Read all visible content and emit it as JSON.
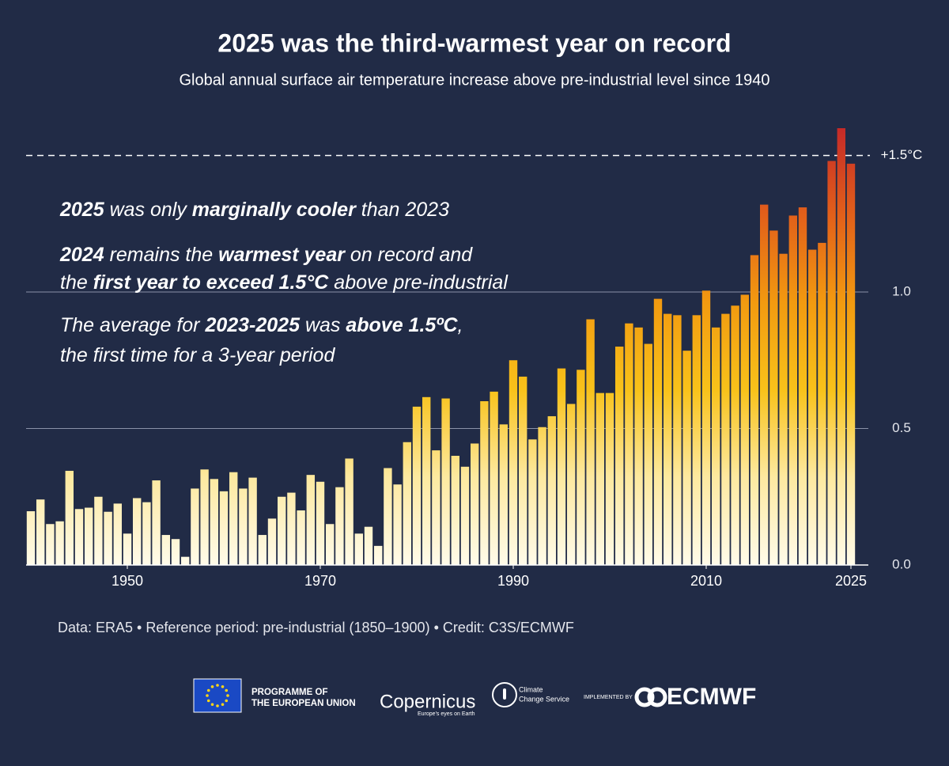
{
  "chart_data": {
    "type": "bar",
    "title": "2025 was the third-warmest year on record",
    "subtitle": "Global annual surface air temperature increase above pre-industrial level since 1940",
    "x": [
      1940,
      1941,
      1942,
      1943,
      1944,
      1945,
      1946,
      1947,
      1948,
      1949,
      1950,
      1951,
      1952,
      1953,
      1954,
      1955,
      1956,
      1957,
      1958,
      1959,
      1960,
      1961,
      1962,
      1963,
      1964,
      1965,
      1966,
      1967,
      1968,
      1969,
      1970,
      1971,
      1972,
      1973,
      1974,
      1975,
      1976,
      1977,
      1978,
      1979,
      1980,
      1981,
      1982,
      1983,
      1984,
      1985,
      1986,
      1987,
      1988,
      1989,
      1990,
      1991,
      1992,
      1993,
      1994,
      1995,
      1996,
      1997,
      1998,
      1999,
      2000,
      2001,
      2002,
      2003,
      2004,
      2005,
      2006,
      2007,
      2008,
      2009,
      2010,
      2011,
      2012,
      2013,
      2014,
      2015,
      2016,
      2017,
      2018,
      2019,
      2020,
      2021,
      2022,
      2023,
      2024,
      2025
    ],
    "values": [
      0.197,
      0.24,
      0.15,
      0.16,
      0.345,
      0.205,
      0.21,
      0.25,
      0.195,
      0.225,
      0.115,
      0.245,
      0.23,
      0.31,
      0.11,
      0.095,
      0.03,
      0.28,
      0.35,
      0.315,
      0.27,
      0.34,
      0.28,
      0.32,
      0.11,
      0.17,
      0.25,
      0.265,
      0.2,
      0.33,
      0.305,
      0.15,
      0.285,
      0.39,
      0.115,
      0.14,
      0.07,
      0.355,
      0.295,
      0.45,
      0.58,
      0.615,
      0.42,
      0.61,
      0.4,
      0.36,
      0.445,
      0.6,
      0.635,
      0.515,
      0.75,
      0.69,
      0.46,
      0.505,
      0.545,
      0.72,
      0.59,
      0.715,
      0.9,
      0.63,
      0.63,
      0.8,
      0.885,
      0.87,
      0.81,
      0.975,
      0.92,
      0.915,
      0.785,
      0.915,
      1.005,
      0.87,
      0.92,
      0.95,
      0.99,
      1.135,
      1.32,
      1.225,
      1.14,
      1.28,
      1.31,
      1.155,
      1.18,
      1.48,
      1.6,
      1.47
    ],
    "colors": [
      "#fffbea",
      "#fde9a0",
      "#f8c21a",
      "#f29a10",
      "#e2601a",
      "#c52a28"
    ],
    "xlim": [
      1939.5,
      2025.5
    ],
    "xticks": [
      1950,
      1970,
      1990,
      2010,
      2025
    ],
    "ylim": [
      0,
      1.6
    ],
    "yticks": [
      {
        "value": 0,
        "label": "0.0"
      },
      0.5,
      {
        "value": 1,
        "label": "1.0"
      }
    ],
    "grid": true,
    "reference_line": {
      "value": 1.5,
      "label": "+1.5°C"
    },
    "annotations": [
      [
        [
          {
            "text": "2025",
            "bold": true
          },
          {
            "text": " was only ",
            "bold": false
          },
          {
            "text": "marginally cooler",
            "bold": true
          },
          {
            "text": " than 2023",
            "bold": false
          }
        ]
      ],
      [
        [
          {
            "text": "2024",
            "bold": true
          },
          {
            "text": " remains the ",
            "bold": false
          },
          {
            "text": "warmest year",
            "bold": true
          },
          {
            "text": " on record and",
            "bold": false
          }
        ],
        [
          {
            "text": "the ",
            "bold": false
          },
          {
            "text": "first year to exceed 1.5°C",
            "bold": true
          },
          {
            "text": " above pre-industrial",
            "bold": false
          }
        ]
      ],
      [
        [
          {
            "text": "The average for ",
            "bold": false
          },
          {
            "text": "2023-2025",
            "bold": true
          },
          {
            "text": " was ",
            "bold": false
          },
          {
            "text": "above 1.5ºC",
            "bold": true
          },
          {
            "text": ",",
            "bold": false
          }
        ],
        [
          {
            "text": "the first time for a 3-year period",
            "bold": false
          }
        ]
      ]
    ],
    "source": "Data: ERA5 • Reference period: pre-industrial (1850–1900) • Credit: C3S/ECMWF"
  },
  "logos": {
    "eu": [
      "PROGRAMME OF",
      "THE EUROPEAN UNION"
    ],
    "copernicus": {
      "name": "Copernicus",
      "tagline": "Europe's eyes on Earth"
    },
    "c3s": [
      "Climate",
      "Change Service"
    ],
    "implemented_by": "IMPLEMENTED BY",
    "ecmwf": "ECMWF"
  }
}
